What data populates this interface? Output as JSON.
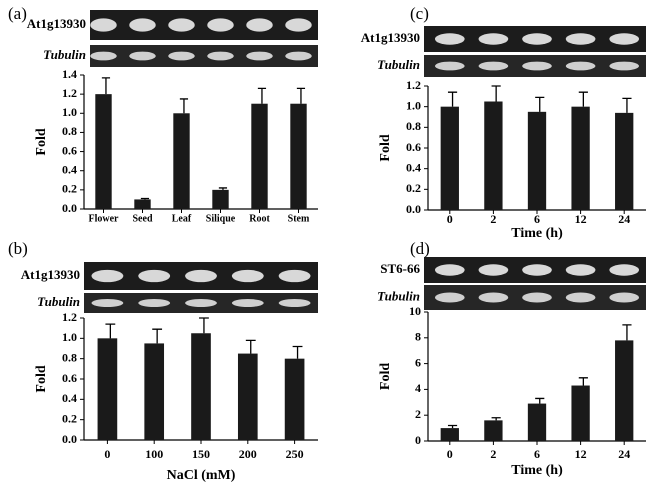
{
  "chart_data": [
    {
      "type": "bar",
      "title": "(a)",
      "gene": "At1g13930",
      "reference": "Tubulin",
      "ylabel": "Fold",
      "categories": [
        "Flower",
        "Seed",
        "Leaf",
        "Silique",
        "Root",
        "Stem"
      ],
      "values": [
        1.2,
        0.1,
        1.0,
        0.2,
        1.1,
        1.1
      ],
      "errors": [
        0.17,
        0.01,
        0.15,
        0.02,
        0.16,
        0.16
      ],
      "color": "#1a1a1a",
      "ylim": [
        0,
        1.4
      ],
      "yticks": [
        {
          "value": 0,
          "label": "0.0"
        },
        0.2,
        0.4,
        0.6,
        0.8,
        {
          "value": 1,
          "label": "1.0"
        },
        1.2,
        1.4
      ]
    },
    {
      "type": "bar",
      "title": "(b)",
      "gene": "At1g13930",
      "reference": "Tubulin",
      "ylabel": "Fold",
      "xlabel": "NaCl (mM)",
      "categories": [
        "0",
        "100",
        "150",
        "200",
        "250"
      ],
      "values": [
        1.0,
        0.95,
        1.05,
        0.85,
        0.8
      ],
      "errors": [
        0.14,
        0.14,
        0.15,
        0.13,
        0.12
      ],
      "color": "#1a1a1a",
      "ylim": [
        0,
        1.2
      ],
      "yticks": [
        {
          "value": 0,
          "label": "0.0"
        },
        0.2,
        0.4,
        0.6,
        0.8,
        {
          "value": 1,
          "label": "1.0"
        },
        1.2
      ]
    },
    {
      "type": "bar",
      "title": "(c)",
      "gene": "At1g13930",
      "reference": "Tubulin",
      "ylabel": "Fold",
      "xlabel": "Time (h)",
      "categories": [
        "0",
        "2",
        "6",
        "12",
        "24"
      ],
      "values": [
        1.0,
        1.05,
        0.95,
        1.0,
        0.94
      ],
      "errors": [
        0.14,
        0.15,
        0.14,
        0.14,
        0.14
      ],
      "color": "#1a1a1a",
      "ylim": [
        0,
        1.2
      ],
      "yticks": [
        {
          "value": 0,
          "label": "0.0"
        },
        0.2,
        0.4,
        0.6,
        0.8,
        {
          "value": 1,
          "label": "1.0"
        },
        1.2
      ]
    },
    {
      "type": "bar",
      "title": "(d)",
      "gene": "ST6-66",
      "reference": "Tubulin",
      "ylabel": "Fold",
      "xlabel": "Time (h)",
      "categories": [
        "0",
        "2",
        "6",
        "12",
        "24"
      ],
      "values": [
        1.0,
        1.6,
        2.9,
        4.3,
        7.8
      ],
      "errors": [
        0.2,
        0.2,
        0.4,
        0.6,
        1.2
      ],
      "color": "#1a1a1a",
      "ylim": [
        0,
        10
      ],
      "yticks": [
        0,
        2,
        4,
        6,
        8,
        10
      ]
    }
  ]
}
